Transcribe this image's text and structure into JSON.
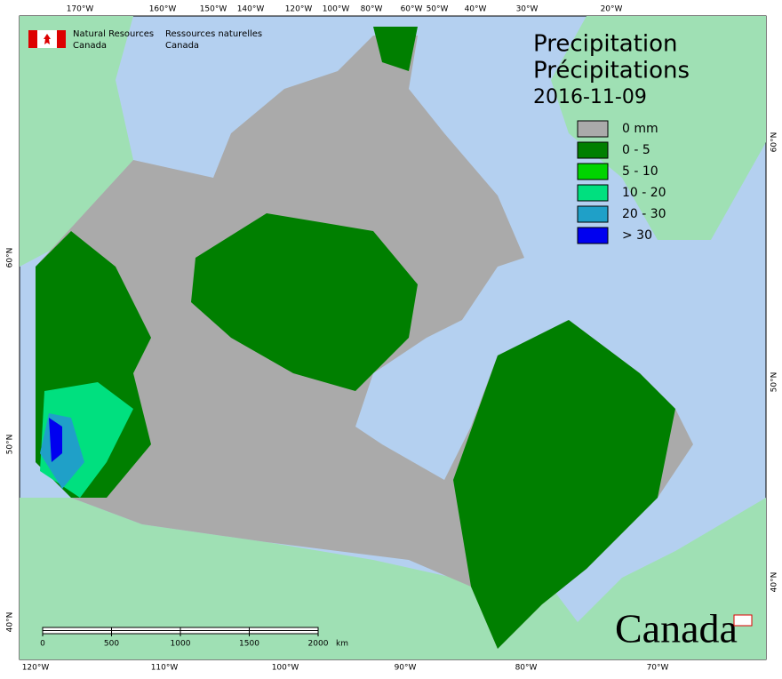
{
  "header": {
    "agency_en": [
      "Natural Resources",
      "Canada"
    ],
    "agency_fr": [
      "Ressources naturelles",
      "Canada"
    ]
  },
  "title": {
    "en": "Precipitation",
    "fr": "Précipitations",
    "date": "2016-11-09"
  },
  "legend": [
    {
      "label": "0 mm",
      "color": "#aaaaaa"
    },
    {
      "label": "0 - 5",
      "color": "#007f00"
    },
    {
      "label": "5 - 10",
      "color": "#00d400"
    },
    {
      "label": "10 - 20",
      "color": "#00e07f"
    },
    {
      "label": "20 - 30",
      "color": "#1fa0c8"
    },
    {
      "label": "> 30",
      "color": "#0000f0"
    }
  ],
  "top_labels": [
    "170°W",
    "160°W",
    "150°W",
    "140°W",
    "120°W",
    "100°W",
    "80°W",
    "60°W",
    "50°W",
    "40°W",
    "30°W",
    "20°W"
  ],
  "bottom_labels": [
    "120°W",
    "110°W",
    "100°W",
    "90°W",
    "80°W",
    "70°W"
  ],
  "left_labels": [
    "60°N",
    "50°N",
    "40°N"
  ],
  "right_labels": [
    "60°N",
    "50°N",
    "40°N"
  ],
  "scale_bar": {
    "ticks": [
      "0",
      "500",
      "1000",
      "1500",
      "2000"
    ],
    "unit": "km"
  },
  "wordmark": "Canada"
}
